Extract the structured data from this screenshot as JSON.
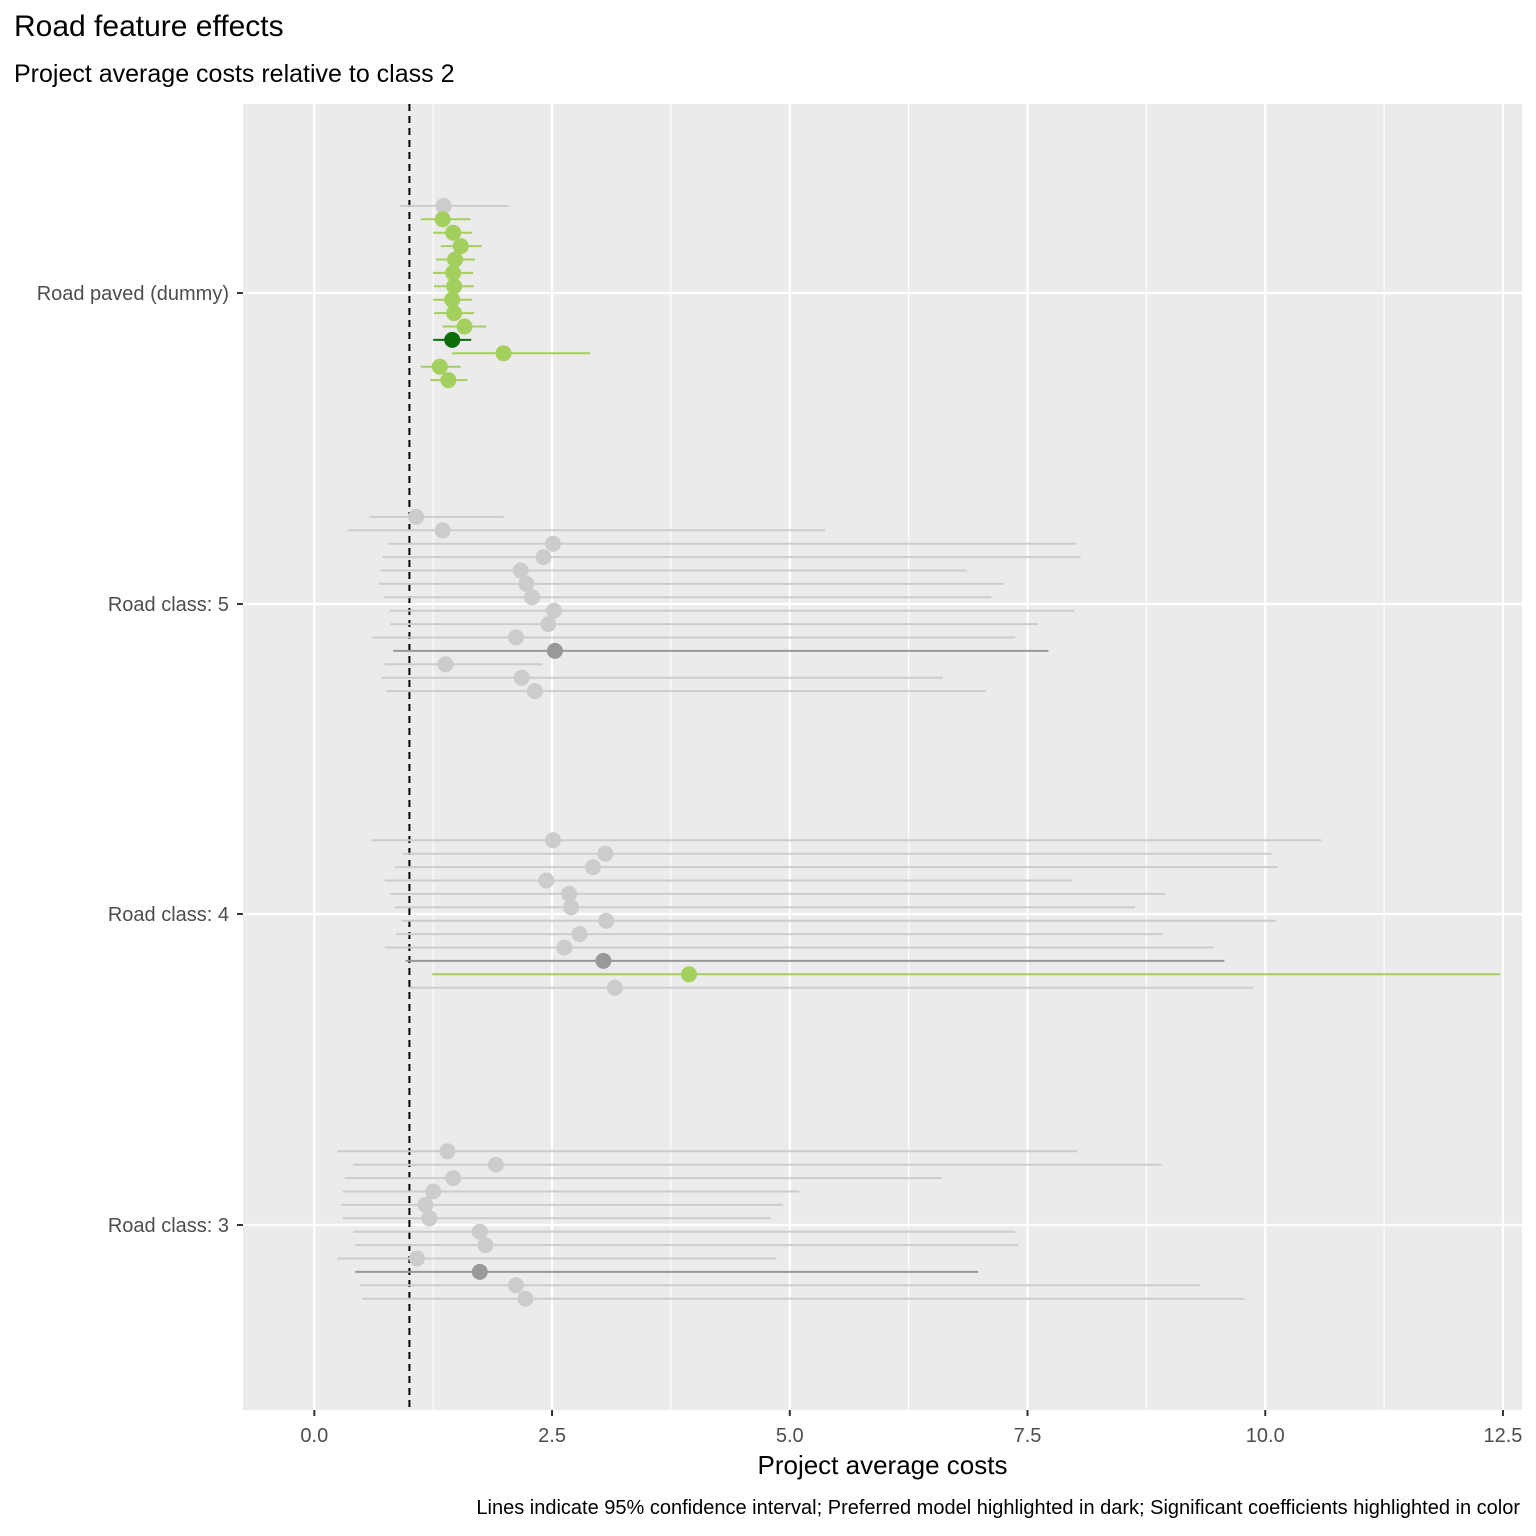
{
  "chart_data": {
    "type": "scatter",
    "title": "Road feature effects",
    "subtitle": "Project average costs relative to class 2",
    "xlabel": "Project average costs",
    "ylabel": "",
    "caption": "Lines indicate 95% confidence interval; Preferred model highlighted in dark; Significant coefficients highlighted in color",
    "xlim": [
      -0.75,
      12.7
    ],
    "x_ticks": [
      "0.0",
      "2.5",
      "5.0",
      "7.5",
      "10.0",
      "12.5"
    ],
    "x_tick_values": [
      0,
      2.5,
      5,
      7.5,
      10,
      12.5
    ],
    "reference_line": 1,
    "grid": true,
    "colors": {
      "panel": "#ebebeb",
      "grid": "#ffffff",
      "insignificant": "#cccccc",
      "insignificant_preferred": "#999999",
      "significant": "#a3cf5c",
      "significant_preferred": "#0b6e0b",
      "reference": "#000000"
    },
    "categories": [
      "Road paved (dummy)",
      "Road class: 5",
      "Road class: 4",
      "Road class: 3"
    ],
    "groups": [
      {
        "category": "Road paved (dummy)",
        "points": [
          {
            "estimate": 1.36,
            "lower": 0.9,
            "upper": 2.04,
            "significant": false,
            "preferred": false
          },
          {
            "estimate": 1.35,
            "lower": 1.12,
            "upper": 1.64,
            "significant": true,
            "preferred": false
          },
          {
            "estimate": 1.46,
            "lower": 1.25,
            "upper": 1.66,
            "significant": true,
            "preferred": false
          },
          {
            "estimate": 1.54,
            "lower": 1.33,
            "upper": 1.76,
            "significant": true,
            "preferred": false
          },
          {
            "estimate": 1.48,
            "lower": 1.28,
            "upper": 1.69,
            "significant": true,
            "preferred": false
          },
          {
            "estimate": 1.46,
            "lower": 1.25,
            "upper": 1.67,
            "significant": true,
            "preferred": false
          },
          {
            "estimate": 1.47,
            "lower": 1.26,
            "upper": 1.68,
            "significant": true,
            "preferred": false
          },
          {
            "estimate": 1.45,
            "lower": 1.25,
            "upper": 1.66,
            "significant": true,
            "preferred": false
          },
          {
            "estimate": 1.47,
            "lower": 1.26,
            "upper": 1.68,
            "significant": true,
            "preferred": false
          },
          {
            "estimate": 1.58,
            "lower": 1.35,
            "upper": 1.81,
            "significant": true,
            "preferred": false
          },
          {
            "estimate": 1.45,
            "lower": 1.25,
            "upper": 1.65,
            "significant": true,
            "preferred": true
          },
          {
            "estimate": 1.99,
            "lower": 1.45,
            "upper": 2.9,
            "significant": true,
            "preferred": false
          },
          {
            "estimate": 1.32,
            "lower": 1.12,
            "upper": 1.54,
            "significant": true,
            "preferred": false
          },
          {
            "estimate": 1.41,
            "lower": 1.22,
            "upper": 1.61,
            "significant": true,
            "preferred": false
          }
        ]
      },
      {
        "category": "Road class: 5",
        "points": [
          {
            "estimate": 1.07,
            "lower": 0.58,
            "upper": 1.99,
            "significant": false,
            "preferred": false
          },
          {
            "estimate": 1.35,
            "lower": 0.35,
            "upper": 5.37,
            "significant": false,
            "preferred": false
          },
          {
            "estimate": 2.51,
            "lower": 0.78,
            "upper": 8.01,
            "significant": false,
            "preferred": false
          },
          {
            "estimate": 2.41,
            "lower": 0.72,
            "upper": 8.06,
            "significant": false,
            "preferred": false
          },
          {
            "estimate": 2.17,
            "lower": 0.7,
            "upper": 6.86,
            "significant": false,
            "preferred": false
          },
          {
            "estimate": 2.23,
            "lower": 0.68,
            "upper": 7.25,
            "significant": false,
            "preferred": false
          },
          {
            "estimate": 2.29,
            "lower": 0.73,
            "upper": 7.12,
            "significant": false,
            "preferred": false
          },
          {
            "estimate": 2.52,
            "lower": 0.79,
            "upper": 7.99,
            "significant": false,
            "preferred": false
          },
          {
            "estimate": 2.46,
            "lower": 0.8,
            "upper": 7.61,
            "significant": false,
            "preferred": false
          },
          {
            "estimate": 2.12,
            "lower": 0.61,
            "upper": 7.37,
            "significant": false,
            "preferred": false
          },
          {
            "estimate": 2.53,
            "lower": 0.83,
            "upper": 7.72,
            "significant": false,
            "preferred": true
          },
          {
            "estimate": 1.38,
            "lower": 0.74,
            "upper": 2.4,
            "significant": false,
            "preferred": false
          },
          {
            "estimate": 2.18,
            "lower": 0.71,
            "upper": 6.61,
            "significant": false,
            "preferred": false
          },
          {
            "estimate": 2.32,
            "lower": 0.76,
            "upper": 7.06,
            "significant": false,
            "preferred": false
          }
        ]
      },
      {
        "category": "Road class: 4",
        "points": [
          {
            "estimate": 2.51,
            "lower": 0.6,
            "upper": 10.59,
            "significant": false,
            "preferred": false
          },
          {
            "estimate": 3.06,
            "lower": 0.93,
            "upper": 10.07,
            "significant": false,
            "preferred": false
          },
          {
            "estimate": 2.93,
            "lower": 0.85,
            "upper": 10.13,
            "significant": false,
            "preferred": false
          },
          {
            "estimate": 2.44,
            "lower": 0.74,
            "upper": 7.97,
            "significant": false,
            "preferred": false
          },
          {
            "estimate": 2.68,
            "lower": 0.8,
            "upper": 8.95,
            "significant": false,
            "preferred": false
          },
          {
            "estimate": 2.7,
            "lower": 0.85,
            "upper": 8.63,
            "significant": false,
            "preferred": false
          },
          {
            "estimate": 3.07,
            "lower": 0.92,
            "upper": 10.11,
            "significant": false,
            "preferred": false
          },
          {
            "estimate": 2.79,
            "lower": 0.86,
            "upper": 8.92,
            "significant": false,
            "preferred": false
          },
          {
            "estimate": 2.63,
            "lower": 0.74,
            "upper": 9.46,
            "significant": false,
            "preferred": false
          },
          {
            "estimate": 3.04,
            "lower": 0.96,
            "upper": 9.57,
            "significant": false,
            "preferred": true
          },
          {
            "estimate": 3.94,
            "lower": 1.24,
            "upper": 12.47,
            "significant": true,
            "preferred": false
          },
          {
            "estimate": 3.16,
            "lower": 1.0,
            "upper": 9.87,
            "significant": false,
            "preferred": false
          }
        ]
      },
      {
        "category": "Road class: 3",
        "points": [
          {
            "estimate": 1.4,
            "lower": 0.24,
            "upper": 8.02,
            "significant": false,
            "preferred": false
          },
          {
            "estimate": 1.91,
            "lower": 0.41,
            "upper": 8.91,
            "significant": false,
            "preferred": false
          },
          {
            "estimate": 1.46,
            "lower": 0.32,
            "upper": 6.6,
            "significant": false,
            "preferred": false
          },
          {
            "estimate": 1.25,
            "lower": 0.3,
            "upper": 5.1,
            "significant": false,
            "preferred": false
          },
          {
            "estimate": 1.17,
            "lower": 0.28,
            "upper": 4.93,
            "significant": false,
            "preferred": false
          },
          {
            "estimate": 1.21,
            "lower": 0.3,
            "upper": 4.8,
            "significant": false,
            "preferred": false
          },
          {
            "estimate": 1.74,
            "lower": 0.41,
            "upper": 7.37,
            "significant": false,
            "preferred": false
          },
          {
            "estimate": 1.8,
            "lower": 0.43,
            "upper": 7.4,
            "significant": false,
            "preferred": false
          },
          {
            "estimate": 1.08,
            "lower": 0.24,
            "upper": 4.85,
            "significant": false,
            "preferred": false
          },
          {
            "estimate": 1.74,
            "lower": 0.43,
            "upper": 6.98,
            "significant": false,
            "preferred": true
          },
          {
            "estimate": 2.12,
            "lower": 0.48,
            "upper": 9.31,
            "significant": false,
            "preferred": false
          },
          {
            "estimate": 2.22,
            "lower": 0.5,
            "upper": 9.78,
            "significant": false,
            "preferred": false
          }
        ]
      }
    ]
  }
}
